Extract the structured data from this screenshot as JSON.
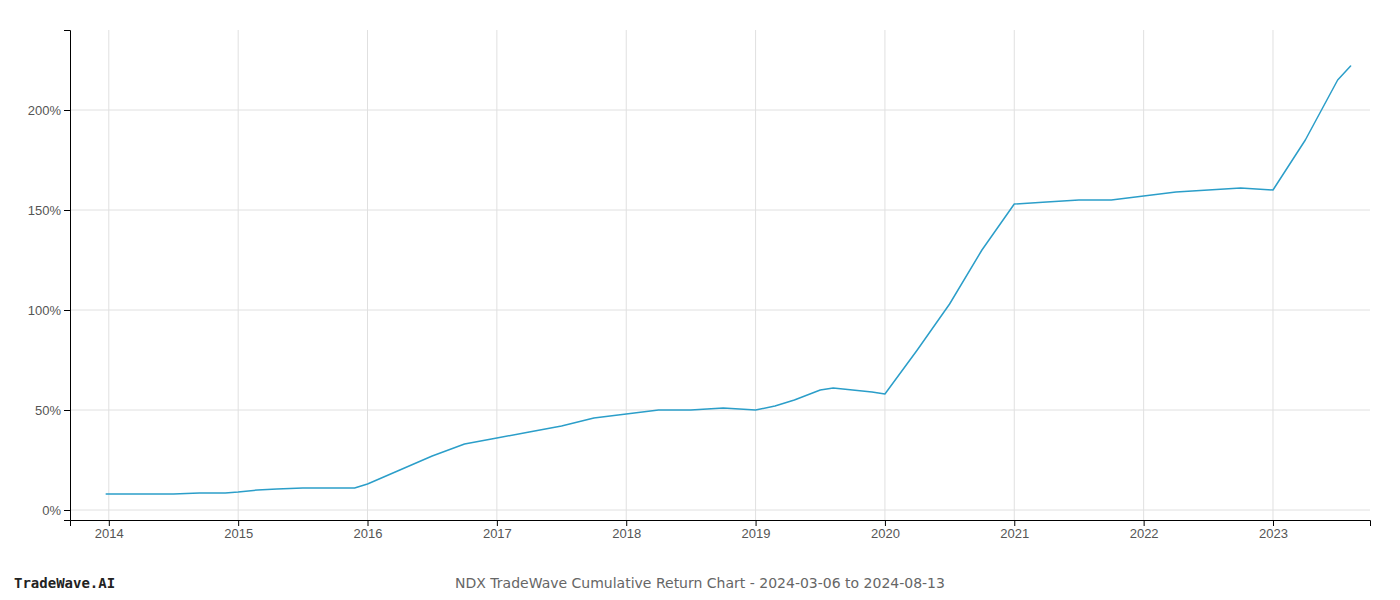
{
  "chart_data": {
    "type": "line",
    "title": "NDX TradeWave Cumulative Return Chart - 2024-03-06 to 2024-08-13",
    "annotations": [
      "TradeWave.AI"
    ],
    "color": "#2b9ec9",
    "grid": true,
    "x": [
      2013.98,
      2014.0,
      2014.15,
      2014.3,
      2014.5,
      2014.7,
      2014.9,
      2015.0,
      2015.15,
      2015.3,
      2015.5,
      2015.7,
      2015.9,
      2016.0,
      2016.25,
      2016.5,
      2016.75,
      2017.0,
      2017.25,
      2017.5,
      2017.75,
      2018.0,
      2018.25,
      2018.5,
      2018.75,
      2019.0,
      2019.15,
      2019.3,
      2019.5,
      2019.6,
      2019.75,
      2019.9,
      2020.0,
      2020.25,
      2020.5,
      2020.75,
      2021.0,
      2021.25,
      2021.5,
      2021.75,
      2022.0,
      2022.25,
      2022.5,
      2022.75,
      2023.0,
      2023.25,
      2023.5,
      2023.6
    ],
    "values": [
      8,
      8,
      8,
      8,
      8,
      8.5,
      8.5,
      9,
      10,
      10.5,
      11,
      11,
      11,
      13,
      20,
      27,
      33,
      36,
      39,
      42,
      46,
      48,
      50,
      50,
      51,
      50,
      52,
      55,
      60,
      61,
      60,
      59,
      58,
      80,
      103,
      130,
      153,
      154,
      155,
      155,
      157,
      159,
      160,
      161,
      160,
      185,
      215,
      222
    ],
    "xlim": [
      2013.7,
      2023.75
    ],
    "xticks": [
      2014,
      2015,
      2016,
      2017,
      2018,
      2019,
      2020,
      2021,
      2022,
      2023
    ],
    "ylim": [
      -5,
      240
    ],
    "yticks": [
      {
        "value": 0,
        "label": "0%"
      },
      {
        "value": 50,
        "label": "50%"
      },
      {
        "value": 100,
        "label": "100%"
      },
      {
        "value": 150,
        "label": "150%"
      },
      {
        "value": 200,
        "label": "200%"
      }
    ]
  }
}
